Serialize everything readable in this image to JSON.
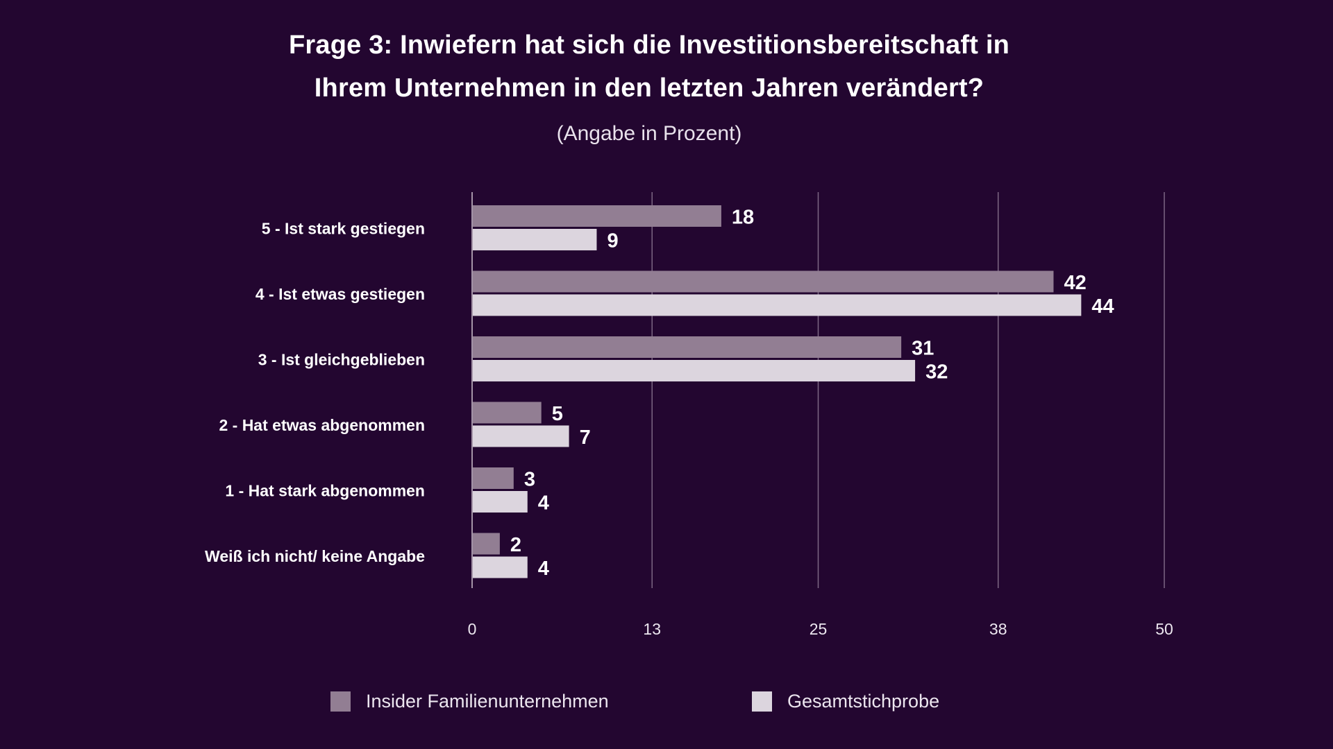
{
  "chart_data": {
    "type": "bar",
    "orientation": "horizontal",
    "title_lines": [
      "Frage 3: Inwiefern hat sich die Investitionsbereitschaft in",
      "Ihrem Unternehmen in den letzten Jahren verändert?"
    ],
    "subtitle": "(Angabe in Prozent)",
    "categories": [
      "5 - Ist stark gestiegen",
      "4 - Ist etwas gestiegen",
      "3 - Ist gleichgeblieben",
      "2 - Hat etwas abgenommen",
      "1 - Hat stark abgenommen",
      "Weiß ich nicht/ keine Angabe"
    ],
    "series": [
      {
        "name": "Insider Familienunternehmen",
        "color": "#927e93",
        "values": [
          18,
          42,
          31,
          5,
          3,
          2
        ]
      },
      {
        "name": "Gesamtstichprobe",
        "color": "#dcd5de",
        "values": [
          9,
          44,
          32,
          7,
          4,
          4
        ]
      }
    ],
    "x_ticks": [
      "0",
      "13",
      "25",
      "38",
      "50"
    ],
    "xlim": [
      0,
      50
    ],
    "grid": true,
    "legend_position": "bottom"
  }
}
